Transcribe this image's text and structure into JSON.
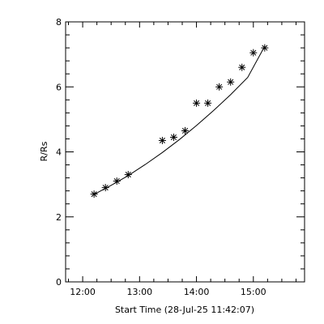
{
  "chart_data": {
    "type": "scatter",
    "title": "",
    "xlabel": "Start Time (28-Jul-25 11:42:07)",
    "ylabel": "R/Rs",
    "x_unit": "hours of day",
    "xlim": [
      11.7,
      15.9
    ],
    "ylim": [
      0,
      8
    ],
    "x_ticks": [
      {
        "value": 12,
        "label": "12:00"
      },
      {
        "value": 13,
        "label": "13:00"
      },
      {
        "value": 14,
        "label": "14:00"
      },
      {
        "value": 15,
        "label": "15:00"
      }
    ],
    "x_minor_step": 0.25,
    "y_ticks": [
      {
        "value": 0,
        "label": "0"
      },
      {
        "value": 2,
        "label": "2"
      },
      {
        "value": 4,
        "label": "4"
      },
      {
        "value": 6,
        "label": "6"
      },
      {
        "value": 8,
        "label": "8"
      }
    ],
    "y_minor_step": 0.4,
    "grid": false,
    "legend": "none",
    "marker": "asterisk",
    "series": [
      {
        "points": [
          [
            12.2,
            2.7
          ],
          [
            12.4,
            2.9
          ],
          [
            12.6,
            3.1
          ],
          [
            12.8,
            3.3
          ],
          [
            13.4,
            4.35
          ],
          [
            13.6,
            4.45
          ],
          [
            13.8,
            4.65
          ],
          [
            14.0,
            5.5
          ],
          [
            14.2,
            5.5
          ],
          [
            14.4,
            6.0
          ],
          [
            14.6,
            6.15
          ],
          [
            14.8,
            6.6
          ],
          [
            15.0,
            7.05
          ],
          [
            15.2,
            7.2
          ]
        ]
      }
    ],
    "fit": {
      "kind": "quadratic",
      "x_range": [
        12.2,
        15.2
      ],
      "points": [
        [
          12.2,
          2.69
        ],
        [
          12.5,
          2.97
        ],
        [
          12.8,
          3.27
        ],
        [
          13.1,
          3.61
        ],
        [
          13.4,
          3.98
        ],
        [
          13.7,
          4.38
        ],
        [
          14.0,
          4.81
        ],
        [
          14.3,
          5.27
        ],
        [
          14.6,
          5.76
        ],
        [
          14.9,
          6.29
        ],
        [
          15.2,
          7.25
        ]
      ]
    }
  }
}
